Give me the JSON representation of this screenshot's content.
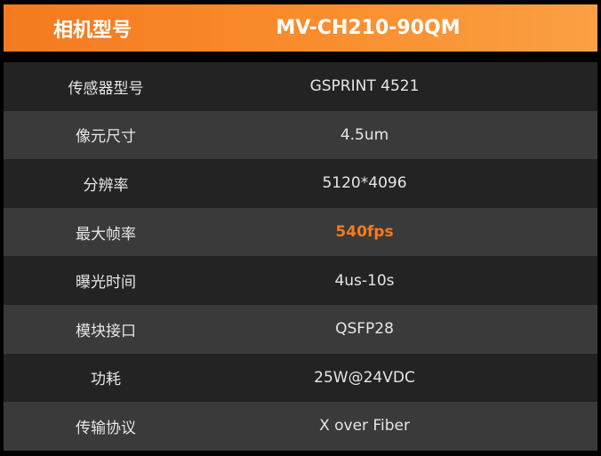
{
  "header": {
    "label": "相机型号",
    "value": "MV-CH210-90QM"
  },
  "accent_color": "#f47a1f",
  "rows": [
    {
      "label": "传感器型号",
      "value": "GSPRINT 4521"
    },
    {
      "label": "像元尺寸",
      "value": "4.5um"
    },
    {
      "label": "分辨率",
      "value": "5120*4096"
    },
    {
      "label": "最大帧率",
      "value": "540fps",
      "highlight": true
    },
    {
      "label": "曝光时间",
      "value": "4us-10s"
    },
    {
      "label": "模块接口",
      "value": "QSFP28"
    },
    {
      "label": "功耗",
      "value": "25W@24VDC"
    },
    {
      "label": "传输协议",
      "value": "X over Fiber"
    }
  ]
}
